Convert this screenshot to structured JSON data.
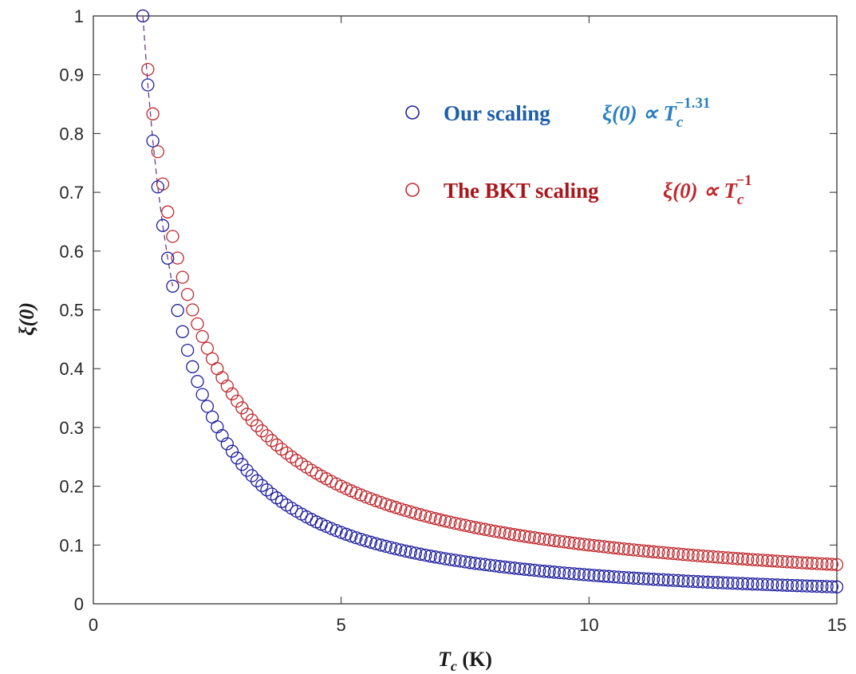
{
  "chart_data": {
    "type": "scatter",
    "title": "",
    "xlabel": {
      "symbol": "T",
      "subscript": "c",
      "unit": " (K)"
    },
    "ylabel": "ξ(0)",
    "xlim": [
      0,
      15
    ],
    "ylim": [
      0,
      1
    ],
    "xticks": [
      "0",
      "5",
      "10",
      "15"
    ],
    "yticks": [
      "0",
      "0.1",
      "0.2",
      "0.3",
      "0.4",
      "0.5",
      "0.6",
      "0.7",
      "0.8",
      "0.9",
      "1"
    ],
    "grid": false,
    "box": true,
    "legend_position": "upper-right",
    "marker": "open-circle",
    "x_start": 1.0,
    "x_end": 15.0,
    "x_step": 0.1,
    "series": [
      {
        "name": "Our scaling",
        "formula": {
          "lhs": "ξ(0) ∝ ",
          "base": "T",
          "subscript": "c",
          "exponent": "−1.31"
        },
        "exponent": -1.31,
        "color": "#1f1fa0",
        "legend_color": "#1f5fa8",
        "connector": "dashed"
      },
      {
        "name": "The BKT scaling",
        "formula": {
          "lhs": "ξ(0) ∝ ",
          "base": "T",
          "subscript": "c",
          "exponent": "−1"
        },
        "exponent": -1,
        "color": "#c0282d",
        "legend_color": "#a8161c",
        "connector": "none"
      }
    ],
    "connector_color": "#6a3a8a"
  }
}
